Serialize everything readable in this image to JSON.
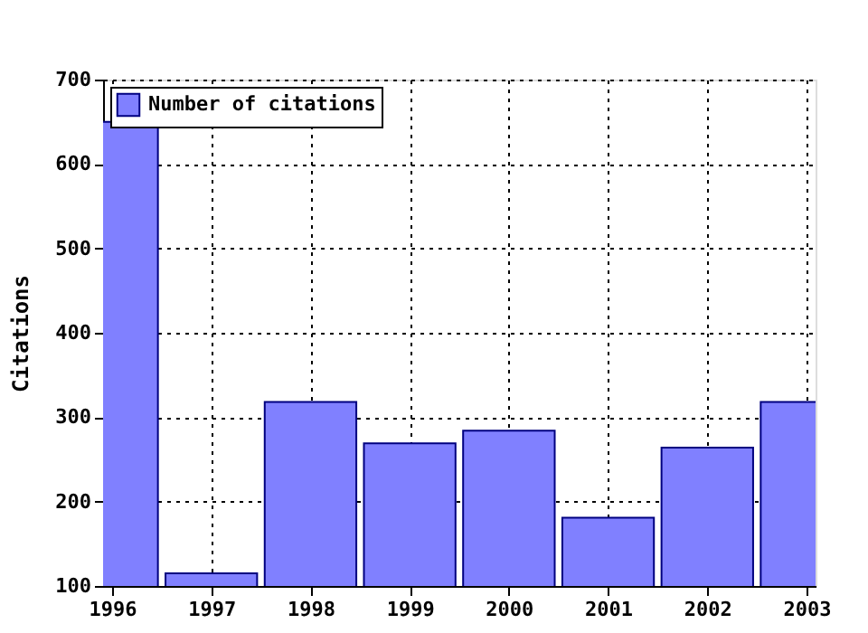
{
  "chart_data": {
    "type": "bar",
    "ylabel": "Citations",
    "x": [
      1996,
      1997,
      1998,
      1999,
      2000,
      2001,
      2002,
      2003
    ],
    "series": [
      {
        "name": "Number of citations",
        "color": "#8080ff",
        "values": [
          650,
          115,
          318,
          269,
          284,
          181,
          264,
          318
        ]
      }
    ],
    "xlim": [
      1996,
      2003
    ],
    "xticks": [
      1996,
      1997,
      1998,
      1999,
      2000,
      2001,
      2002,
      2003
    ],
    "ylim": [
      100,
      700
    ],
    "yticks": [
      100,
      200,
      300,
      400,
      500,
      600,
      700
    ],
    "grid": true,
    "legend": "top left"
  }
}
